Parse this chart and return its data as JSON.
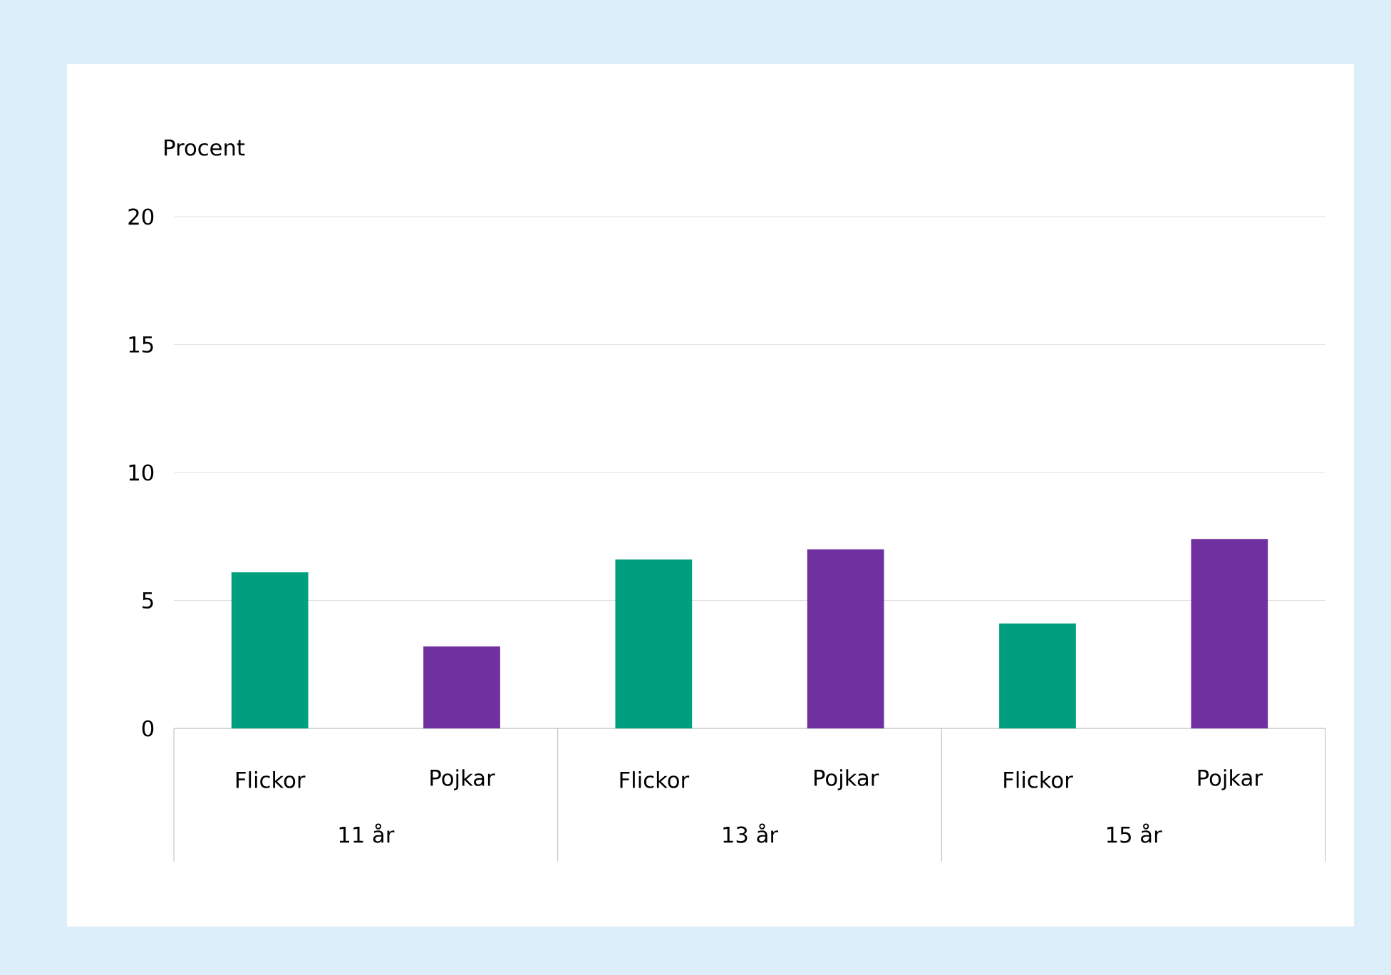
{
  "chart_data": {
    "type": "bar",
    "ylabel": "Procent",
    "categories": [
      "11 år",
      "13 år",
      "15 år"
    ],
    "series": [
      {
        "name": "Flickor",
        "color": "#00a07f",
        "values": [
          6.1,
          6.6,
          4.1
        ]
      },
      {
        "name": "Pojkar",
        "color": "#7030a0",
        "values": [
          3.2,
          7.0,
          7.4
        ]
      }
    ],
    "ylim": [
      0,
      20
    ],
    "yticks": [
      0,
      5,
      10,
      15,
      20
    ],
    "grid": "y"
  }
}
